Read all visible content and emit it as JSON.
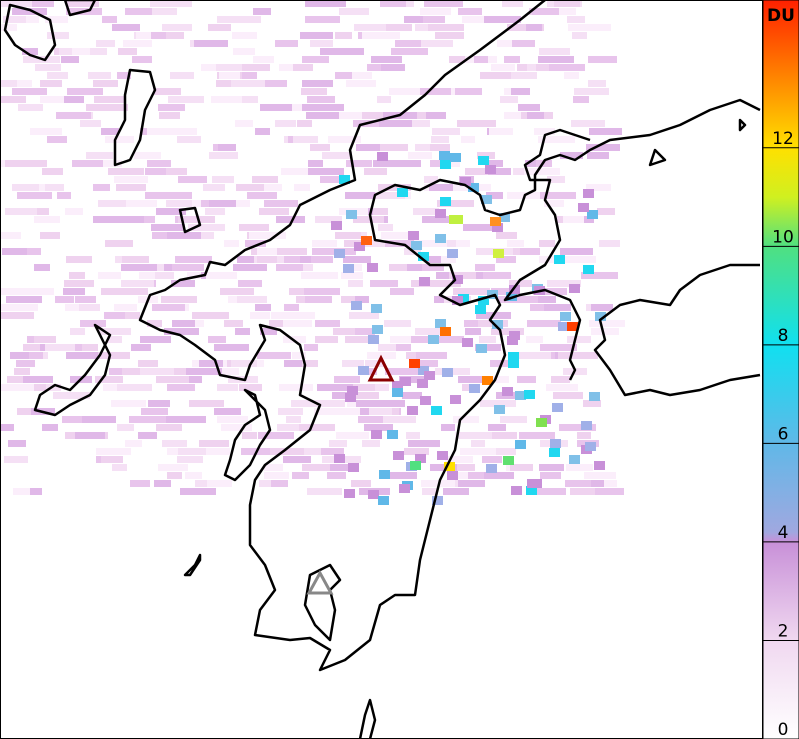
{
  "colorbar": {
    "label": "DU",
    "lim": [
      0,
      15
    ],
    "ticks": [
      0,
      2,
      4,
      6,
      8,
      10,
      12
    ],
    "stops": [
      {
        "value": 0,
        "color": "#ffffff"
      },
      {
        "value": 2,
        "color": "#f0d8f0"
      },
      {
        "value": 4,
        "color": "#c890d8"
      },
      {
        "value": 4.2,
        "color": "#a0a8e0"
      },
      {
        "value": 6,
        "color": "#60b8e8"
      },
      {
        "value": 8,
        "color": "#10e0f0"
      },
      {
        "value": 10,
        "color": "#50e080"
      },
      {
        "value": 11,
        "color": "#d0f020"
      },
      {
        "value": 12,
        "color": "#ffe000"
      },
      {
        "value": 13.5,
        "color": "#ff8000"
      },
      {
        "value": 15,
        "color": "#ff2000"
      }
    ]
  }
}
